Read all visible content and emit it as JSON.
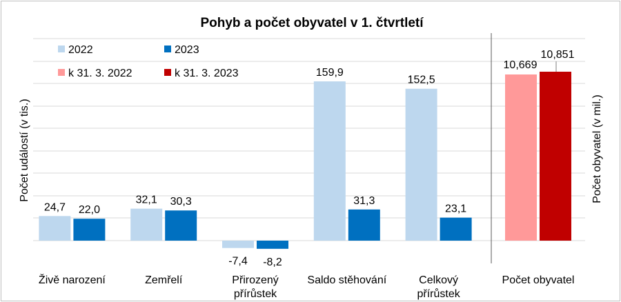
{
  "chart_data": {
    "type": "bar",
    "title": "Pohyb a počet obyvatel v 1. čtvrtletí",
    "ylabel_left": "Počet událostí (v tis.)",
    "ylabel_right": "Počet obyvatel (v mil.)",
    "grid": true,
    "legend_position": "top-left",
    "left_panel": {
      "categories": [
        "Živě narození",
        "Zemřelí",
        "Přirozený přírůstek",
        "Saldo stěhování",
        "Celkový přírůstek"
      ],
      "category_lines": [
        [
          "Živě narození"
        ],
        [
          "Zemřelí"
        ],
        [
          "Přirozený",
          "přírůstek"
        ],
        [
          "Saldo stěhování"
        ],
        [
          "Celkový",
          "přírůstek"
        ]
      ],
      "ylim": [
        -20,
        180
      ],
      "series": [
        {
          "name": "2022",
          "color": "#bdd7ee",
          "values": [
            24.7,
            32.1,
            -7.4,
            159.9,
            152.5
          ],
          "labels": [
            "24,7",
            "32,1",
            "-7,4",
            "159,9",
            "152,5"
          ]
        },
        {
          "name": "2023",
          "color": "#0070c0",
          "values": [
            22.0,
            30.3,
            -8.2,
            31.3,
            23.1
          ],
          "labels": [
            "22,0",
            "30,3",
            "-8,2",
            "31,3",
            "23,1"
          ]
        }
      ]
    },
    "right_panel": {
      "categories": [
        "Počet obyvatel"
      ],
      "ylim": [
        9.0,
        11.0
      ],
      "series": [
        {
          "name": "k 31. 3. 2022",
          "color": "#ff9999",
          "values": [
            10.669
          ],
          "labels": [
            "10,669"
          ]
        },
        {
          "name": "k 31. 3. 2023",
          "color": "#c00000",
          "values": [
            10.851
          ],
          "labels": [
            "10,851"
          ]
        }
      ]
    }
  }
}
